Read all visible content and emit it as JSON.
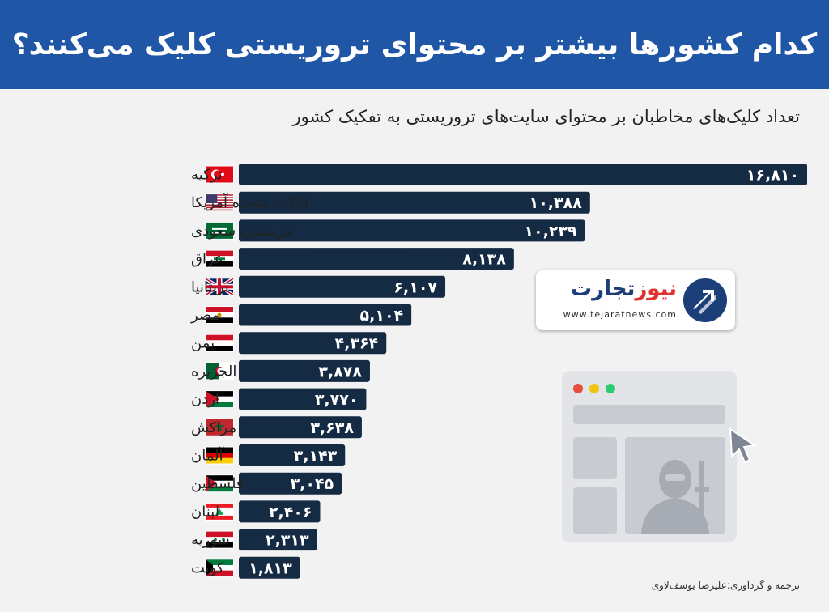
{
  "header": {
    "title": "کدام کشورها بیشتر بر محتوای تروریستی کلیک می‌کنند؟"
  },
  "chart_data": {
    "type": "bar",
    "orientation": "horizontal",
    "title": "",
    "subtitle": "تعداد کلیک‌های مخاطبان بر محتوای سایت‌های تروریستی به تفکیک کشور",
    "categories": [
      "ترکیه",
      "ایالات متحده آمریکا",
      "عربستان سعودی",
      "عراق",
      "بریتانیا",
      "مصر",
      "یمن",
      "الجزیره",
      "اردن",
      "مراکش",
      "آلمان",
      "فلسطین",
      "لبنان",
      "سوریه",
      "کویت"
    ],
    "values": [
      16810,
      10388,
      10239,
      8138,
      6107,
      5104,
      4364,
      3878,
      3770,
      3638,
      3143,
      3045,
      2406,
      2313,
      1813
    ],
    "value_labels": [
      "۱۶,۸۱۰",
      "۱۰,۳۸۸",
      "۱۰,۲۳۹",
      "۸,۱۳۸",
      "۶,۱۰۷",
      "۵,۱۰۴",
      "۴,۳۶۴",
      "۳,۸۷۸",
      "۳,۷۷۰",
      "۳,۶۳۸",
      "۳,۱۴۳",
      "۳,۰۴۵",
      "۲,۴۰۶",
      "۲,۳۱۳",
      "۱,۸۱۳"
    ],
    "flags": [
      "turkey-flag",
      "usa-flag",
      "saudi-arabia-flag",
      "iraq-flag",
      "uk-flag",
      "egypt-flag",
      "yemen-flag",
      "algeria-flag",
      "jordan-flag",
      "morocco-flag",
      "germany-flag",
      "palestine-flag",
      "lebanon-flag",
      "syria-flag",
      "kuwait-flag"
    ],
    "xlim": [
      0,
      16810
    ],
    "bar_color": "#152a43",
    "grid": false,
    "legend": "none"
  },
  "logo": {
    "name_part1": "تجارت",
    "name_part2": "نیوز",
    "url": "www.tejaratnews.com"
  },
  "colors": {
    "header_bg": "#1f57a6",
    "bar": "#152a43",
    "background": "#f2f2f2"
  },
  "credit": "ترجمه و گردآوری:علیرضا یوسف‌لاوی"
}
